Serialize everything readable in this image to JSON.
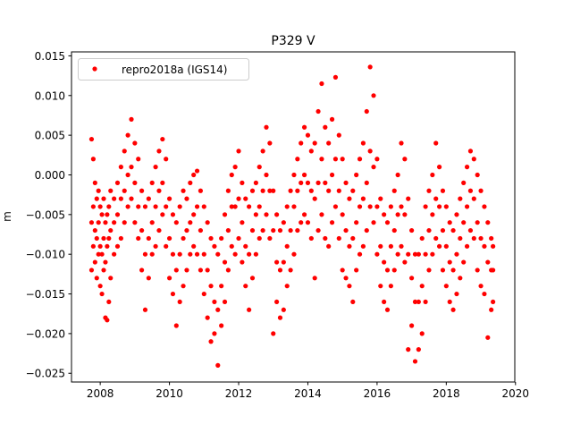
{
  "chart_data": {
    "type": "scatter",
    "title": "P329 V",
    "xlabel": "",
    "ylabel": "m",
    "xlim": [
      2007.17,
      2019.98
    ],
    "ylim": [
      -0.0261,
      0.0155
    ],
    "xticks": [
      2008,
      2010,
      2012,
      2014,
      2016,
      2018,
      2020
    ],
    "xtick_labels": [
      "2008",
      "2010",
      "2012",
      "2014",
      "2016",
      "2018",
      "2020"
    ],
    "yticks": [
      0.015,
      0.01,
      0.005,
      0.0,
      -0.005,
      -0.01,
      -0.015,
      -0.02,
      -0.025
    ],
    "ytick_labels": [
      "0.015",
      "0.010",
      "0.005",
      "0.000",
      "−0.005",
      "−0.010",
      "−0.015",
      "−0.020",
      "−0.025"
    ],
    "grid": false,
    "legend_position": "top-left",
    "series": [
      {
        "name": "repro2018a (IGS14)",
        "color": "#ff0000",
        "marker": "circle",
        "samples": [
          {
            "t": 2007.75,
            "y": [
              0.0045,
              -0.006,
              -0.012
            ]
          },
          {
            "t": 2007.8,
            "y": [
              0.002,
              -0.004,
              -0.009
            ]
          },
          {
            "t": 2007.85,
            "y": [
              -0.001,
              -0.007,
              -0.011
            ]
          },
          {
            "t": 2007.9,
            "y": [
              -0.003,
              -0.008,
              -0.013
            ]
          },
          {
            "t": 2007.95,
            "y": [
              -0.002,
              -0.006,
              -0.01
            ]
          },
          {
            "t": 2008.0,
            "y": [
              -0.004,
              -0.009,
              -0.014
            ]
          },
          {
            "t": 2008.05,
            "y": [
              -0.005,
              -0.01,
              -0.015
            ]
          },
          {
            "t": 2008.1,
            "y": [
              -0.003,
              -0.008,
              -0.012
            ]
          },
          {
            "t": 2008.15,
            "y": [
              -0.006,
              -0.011,
              -0.018
            ]
          },
          {
            "t": 2008.2,
            "y": [
              -0.005,
              -0.009,
              -0.0183
            ]
          },
          {
            "t": 2008.25,
            "y": [
              -0.004,
              -0.008,
              -0.016
            ]
          },
          {
            "t": 2008.3,
            "y": [
              -0.002,
              -0.007,
              -0.013
            ]
          },
          {
            "t": 2008.4,
            "y": [
              -0.003,
              -0.006,
              -0.01
            ]
          },
          {
            "t": 2008.5,
            "y": [
              -0.001,
              -0.005,
              -0.009
            ]
          },
          {
            "t": 2008.6,
            "y": [
              0.001,
              -0.003,
              -0.008
            ]
          },
          {
            "t": 2008.7,
            "y": [
              0.003,
              -0.002,
              -0.006
            ]
          },
          {
            "t": 2008.8,
            "y": [
              0.005,
              0.0,
              -0.004
            ]
          },
          {
            "t": 2008.9,
            "y": [
              0.007,
              0.001,
              -0.003
            ]
          },
          {
            "t": 2009.0,
            "y": [
              0.004,
              -0.001,
              -0.006
            ]
          },
          {
            "t": 2009.1,
            "y": [
              0.002,
              -0.004,
              -0.008
            ]
          },
          {
            "t": 2009.2,
            "y": [
              -0.002,
              -0.007,
              -0.012
            ]
          },
          {
            "t": 2009.3,
            "y": [
              -0.004,
              -0.01,
              -0.017
            ]
          },
          {
            "t": 2009.4,
            "y": [
              -0.003,
              -0.008,
              -0.013
            ]
          },
          {
            "t": 2009.5,
            "y": [
              -0.001,
              -0.006,
              -0.01
            ]
          },
          {
            "t": 2009.6,
            "y": [
              0.001,
              -0.004,
              -0.009
            ]
          },
          {
            "t": 2009.7,
            "y": [
              0.003,
              -0.002,
              -0.007
            ]
          },
          {
            "t": 2009.8,
            "y": [
              0.0045,
              -0.001,
              -0.005
            ]
          },
          {
            "t": 2009.9,
            "y": [
              0.002,
              -0.004,
              -0.009
            ]
          },
          {
            "t": 2010.0,
            "y": [
              -0.003,
              -0.008,
              -0.013
            ]
          },
          {
            "t": 2010.1,
            "y": [
              -0.005,
              -0.01,
              -0.015
            ]
          },
          {
            "t": 2010.2,
            "y": [
              -0.006,
              -0.012,
              -0.019
            ]
          },
          {
            "t": 2010.3,
            "y": [
              -0.004,
              -0.01,
              -0.016
            ]
          },
          {
            "t": 2010.4,
            "y": [
              -0.002,
              -0.008,
              -0.014
            ]
          },
          {
            "t": 2010.5,
            "y": [
              -0.003,
              -0.007,
              -0.012
            ]
          },
          {
            "t": 2010.6,
            "y": [
              -0.001,
              -0.006,
              -0.01
            ]
          },
          {
            "t": 2010.7,
            "y": [
              0.0,
              -0.005,
              -0.009
            ]
          },
          {
            "t": 2010.8,
            "y": [
              0.0005,
              -0.004,
              -0.01
            ]
          },
          {
            "t": 2010.9,
            "y": [
              -0.002,
              -0.007,
              -0.012
            ]
          },
          {
            "t": 2011.0,
            "y": [
              -0.004,
              -0.01,
              -0.015
            ]
          },
          {
            "t": 2011.1,
            "y": [
              -0.006,
              -0.012,
              -0.018
            ]
          },
          {
            "t": 2011.2,
            "y": [
              -0.008,
              -0.014,
              -0.021
            ]
          },
          {
            "t": 2011.3,
            "y": [
              -0.009,
              -0.016,
              -0.02
            ]
          },
          {
            "t": 2011.4,
            "y": [
              -0.01,
              -0.017,
              -0.024
            ]
          },
          {
            "t": 2011.5,
            "y": [
              -0.008,
              -0.014,
              -0.019
            ]
          },
          {
            "t": 2011.6,
            "y": [
              -0.005,
              -0.011,
              -0.016
            ]
          },
          {
            "t": 2011.7,
            "y": [
              -0.002,
              -0.007,
              -0.012
            ]
          },
          {
            "t": 2011.8,
            "y": [
              0.0,
              -0.004,
              -0.009
            ]
          },
          {
            "t": 2011.9,
            "y": [
              0.001,
              -0.004,
              -0.01
            ]
          },
          {
            "t": 2012.0,
            "y": [
              0.003,
              -0.003,
              -0.008
            ]
          },
          {
            "t": 2012.1,
            "y": [
              -0.001,
              -0.006,
              -0.011
            ]
          },
          {
            "t": 2012.2,
            "y": [
              -0.003,
              -0.009,
              -0.014
            ]
          },
          {
            "t": 2012.3,
            "y": [
              -0.004,
              -0.01,
              -0.017
            ]
          },
          {
            "t": 2012.4,
            "y": [
              -0.002,
              -0.007,
              -0.013
            ]
          },
          {
            "t": 2012.5,
            "y": [
              -0.001,
              -0.005,
              -0.01
            ]
          },
          {
            "t": 2012.6,
            "y": [
              0.001,
              -0.004,
              -0.008
            ]
          },
          {
            "t": 2012.7,
            "y": [
              0.003,
              -0.002,
              -0.007
            ]
          },
          {
            "t": 2012.8,
            "y": [
              0.006,
              0.0,
              -0.005
            ]
          },
          {
            "t": 2012.9,
            "y": [
              0.004,
              -0.002,
              -0.008
            ]
          },
          {
            "t": 2013.0,
            "y": [
              -0.002,
              -0.007,
              -0.02
            ]
          },
          {
            "t": 2013.1,
            "y": [
              -0.005,
              -0.011,
              -0.016
            ]
          },
          {
            "t": 2013.2,
            "y": [
              -0.007,
              -0.012,
              -0.018
            ]
          },
          {
            "t": 2013.3,
            "y": [
              -0.006,
              -0.011,
              -0.017
            ]
          },
          {
            "t": 2013.4,
            "y": [
              -0.004,
              -0.009,
              -0.014
            ]
          },
          {
            "t": 2013.5,
            "y": [
              -0.002,
              -0.007,
              -0.012
            ]
          },
          {
            "t": 2013.6,
            "y": [
              0.0,
              -0.004,
              -0.01
            ]
          },
          {
            "t": 2013.7,
            "y": [
              0.002,
              -0.002,
              -0.007
            ]
          },
          {
            "t": 2013.8,
            "y": [
              0.004,
              -0.001,
              -0.006
            ]
          },
          {
            "t": 2013.9,
            "y": [
              0.006,
              0.0,
              -0.005
            ]
          },
          {
            "t": 2014.0,
            "y": [
              0.005,
              -0.001,
              -0.006
            ]
          },
          {
            "t": 2014.1,
            "y": [
              0.003,
              -0.002,
              -0.008
            ]
          },
          {
            "t": 2014.2,
            "y": [
              0.004,
              -0.003,
              -0.013
            ]
          },
          {
            "t": 2014.3,
            "y": [
              0.008,
              -0.001,
              -0.007
            ]
          },
          {
            "t": 2014.4,
            "y": [
              0.0115,
              0.002,
              -0.005
            ]
          },
          {
            "t": 2014.5,
            "y": [
              0.006,
              -0.001,
              -0.008
            ]
          },
          {
            "t": 2014.6,
            "y": [
              0.004,
              -0.002,
              -0.009
            ]
          },
          {
            "t": 2014.7,
            "y": [
              0.007,
              0.0,
              -0.006
            ]
          },
          {
            "t": 2014.8,
            "y": [
              0.0123,
              0.002,
              -0.004
            ]
          },
          {
            "t": 2014.9,
            "y": [
              0.005,
              -0.002,
              -0.008
            ]
          },
          {
            "t": 2015.0,
            "y": [
              0.002,
              -0.005,
              -0.012
            ]
          },
          {
            "t": 2015.1,
            "y": [
              -0.001,
              -0.007,
              -0.013
            ]
          },
          {
            "t": 2015.2,
            "y": [
              -0.003,
              -0.009,
              -0.014
            ]
          },
          {
            "t": 2015.3,
            "y": [
              -0.002,
              -0.008,
              -0.016
            ]
          },
          {
            "t": 2015.4,
            "y": [
              0.0,
              -0.006,
              -0.012
            ]
          },
          {
            "t": 2015.5,
            "y": [
              0.002,
              -0.004,
              -0.01
            ]
          },
          {
            "t": 2015.6,
            "y": [
              0.004,
              -0.003,
              -0.009
            ]
          },
          {
            "t": 2015.7,
            "y": [
              0.008,
              -0.001,
              -0.007
            ]
          },
          {
            "t": 2015.8,
            "y": [
              0.0136,
              0.003,
              -0.004
            ]
          },
          {
            "t": 2015.9,
            "y": [
              0.01,
              0.001,
              -0.006
            ]
          },
          {
            "t": 2016.0,
            "y": [
              0.002,
              -0.004,
              -0.01
            ]
          },
          {
            "t": 2016.1,
            "y": [
              -0.003,
              -0.009,
              -0.014
            ]
          },
          {
            "t": 2016.2,
            "y": [
              -0.005,
              -0.011,
              -0.016
            ]
          },
          {
            "t": 2016.3,
            "y": [
              -0.006,
              -0.012,
              -0.017
            ]
          },
          {
            "t": 2016.4,
            "y": [
              -0.004,
              -0.009,
              -0.014
            ]
          },
          {
            "t": 2016.5,
            "y": [
              -0.002,
              -0.007,
              -0.012
            ]
          },
          {
            "t": 2016.6,
            "y": [
              0.0,
              -0.005,
              -0.01
            ]
          },
          {
            "t": 2016.7,
            "y": [
              0.004,
              -0.004,
              -0.009
            ]
          },
          {
            "t": 2016.8,
            "y": [
              0.002,
              -0.005,
              -0.011
            ]
          },
          {
            "t": 2016.9,
            "y": [
              -0.003,
              -0.01,
              -0.022
            ]
          },
          {
            "t": 2017.0,
            "y": [
              -0.007,
              -0.013,
              -0.019
            ]
          },
          {
            "t": 2017.1,
            "y": [
              -0.01,
              -0.016,
              -0.0235
            ]
          },
          {
            "t": 2017.2,
            "y": [
              -0.01,
              -0.016,
              -0.022
            ]
          },
          {
            "t": 2017.3,
            "y": [
              -0.008,
              -0.014,
              -0.02
            ]
          },
          {
            "t": 2017.4,
            "y": [
              -0.004,
              -0.01,
              -0.016
            ]
          },
          {
            "t": 2017.5,
            "y": [
              -0.002,
              -0.007,
              -0.012
            ]
          },
          {
            "t": 2017.6,
            "y": [
              0.0,
              -0.005,
              -0.01
            ]
          },
          {
            "t": 2017.7,
            "y": [
              0.004,
              -0.003,
              -0.008
            ]
          },
          {
            "t": 2017.8,
            "y": [
              0.001,
              -0.004,
              -0.009
            ]
          },
          {
            "t": 2017.9,
            "y": [
              -0.002,
              -0.007,
              -0.012
            ]
          },
          {
            "t": 2018.0,
            "y": [
              -0.004,
              -0.009,
              -0.014
            ]
          },
          {
            "t": 2018.1,
            "y": [
              -0.006,
              -0.011,
              -0.016
            ]
          },
          {
            "t": 2018.2,
            "y": [
              -0.007,
              -0.012,
              -0.017
            ]
          },
          {
            "t": 2018.3,
            "y": [
              -0.005,
              -0.01,
              -0.015
            ]
          },
          {
            "t": 2018.4,
            "y": [
              -0.003,
              -0.008,
              -0.013
            ]
          },
          {
            "t": 2018.5,
            "y": [
              -0.001,
              -0.006,
              -0.011
            ]
          },
          {
            "t": 2018.6,
            "y": [
              0.001,
              -0.004,
              -0.009
            ]
          },
          {
            "t": 2018.7,
            "y": [
              0.003,
              -0.002,
              -0.007
            ]
          },
          {
            "t": 2018.8,
            "y": [
              0.002,
              -0.003,
              -0.008
            ]
          },
          {
            "t": 2018.9,
            "y": [
              0.0,
              -0.006,
              -0.012
            ]
          },
          {
            "t": 2019.0,
            "y": [
              -0.002,
              -0.008,
              -0.014
            ]
          },
          {
            "t": 2019.1,
            "y": [
              -0.004,
              -0.009,
              -0.015
            ]
          },
          {
            "t": 2019.2,
            "y": [
              -0.006,
              -0.011,
              -0.0205
            ]
          },
          {
            "t": 2019.3,
            "y": [
              -0.008,
              -0.012,
              -0.017
            ]
          },
          {
            "t": 2019.35,
            "y": [
              -0.009,
              -0.012,
              -0.016
            ]
          }
        ]
      }
    ]
  }
}
